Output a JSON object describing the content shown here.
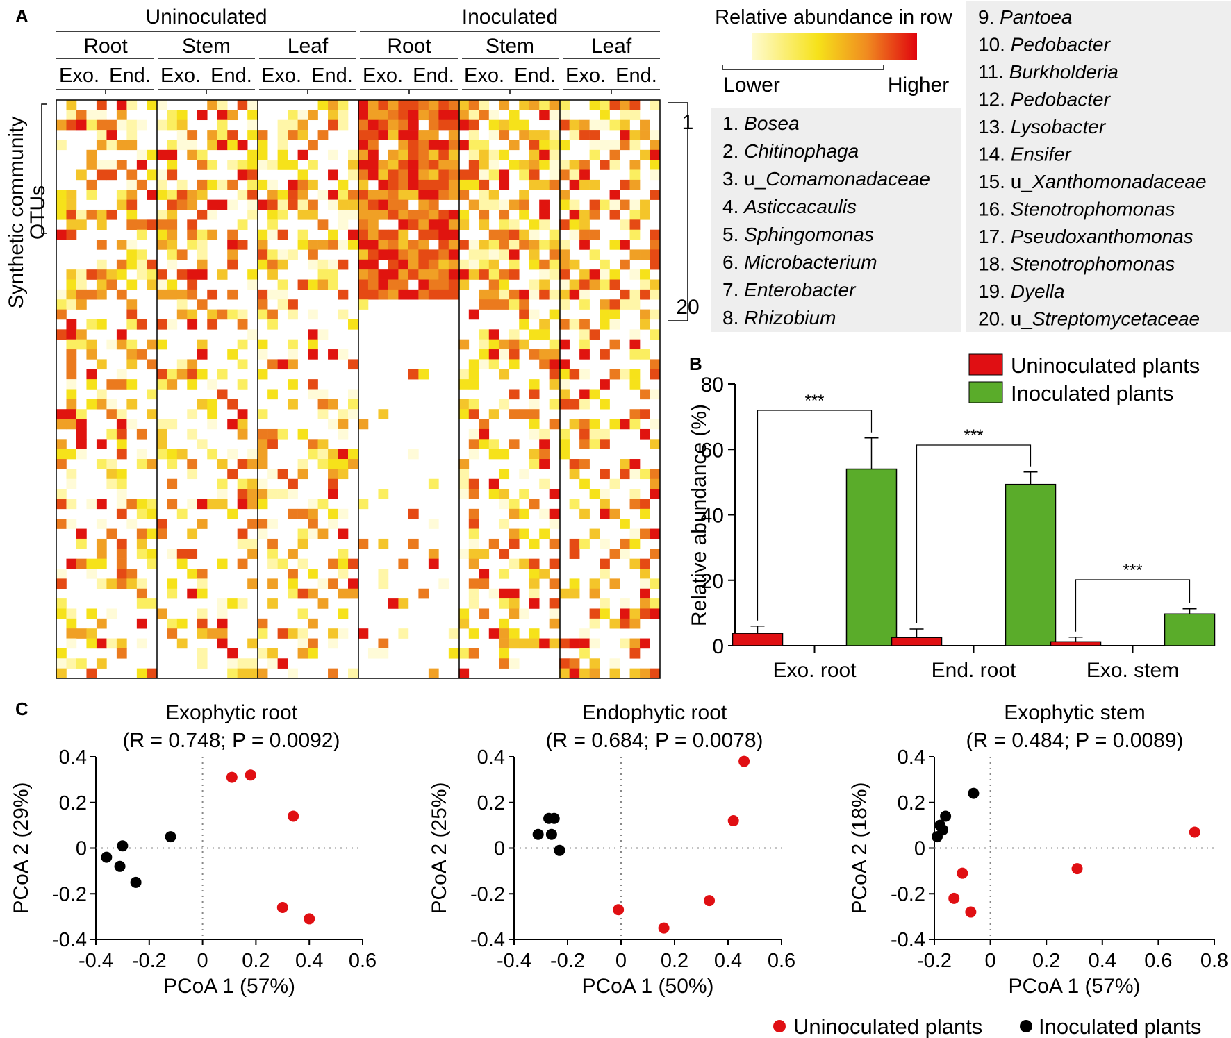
{
  "panel_letters": {
    "a": "A",
    "b": "B",
    "c": "C"
  },
  "colors": {
    "uninoculated": "#e00f13",
    "inoculated_bar": "#5aac2a",
    "inoculated_point": "#000000",
    "box_bg": "#eeeeee",
    "heat_low": "#fffde0",
    "heat_mid": "#f3d81c",
    "heat_high": "#e0140f"
  },
  "heatmap": {
    "groups": [
      "Uninoculated",
      "Inoculated"
    ],
    "tissues": [
      "Root",
      "Stem",
      "Leaf",
      "Root",
      "Stem",
      "Leaf"
    ],
    "compartments": [
      "Exo.",
      "End.",
      "Exo.",
      "End.",
      "Exo.",
      "End.",
      "Exo.",
      "End.",
      "Exo.",
      "End.",
      "Exo.",
      "End."
    ],
    "ylabel_line1": "Synthetic community",
    "ylabel_line2": "OTUs",
    "bracket_start": "1",
    "bracket_end": "20",
    "colorbar_title": "Relative abundance in row",
    "colorbar_low": "Lower",
    "colorbar_high": "Higher"
  },
  "otu_list": [
    {
      "num": "1.",
      "prefix": "",
      "name": "Bosea"
    },
    {
      "num": "2.",
      "prefix": "",
      "name": "Chitinophaga"
    },
    {
      "num": "3.",
      "prefix": "u_",
      "name": "Comamonadaceae"
    },
    {
      "num": "4.",
      "prefix": "",
      "name": "Asticcacaulis"
    },
    {
      "num": "5.",
      "prefix": "",
      "name": "Sphingomonas"
    },
    {
      "num": "6.",
      "prefix": "",
      "name": "Microbacterium"
    },
    {
      "num": "7.",
      "prefix": "",
      "name": "Enterobacter"
    },
    {
      "num": "8.",
      "prefix": "",
      "name": "Rhizobium"
    },
    {
      "num": "9.",
      "prefix": "",
      "name": "Pantoea"
    },
    {
      "num": "10.",
      "prefix": "",
      "name": "Pedobacter"
    },
    {
      "num": "11.",
      "prefix": "",
      "name": "Burkholderia"
    },
    {
      "num": "12.",
      "prefix": "",
      "name": "Pedobacter"
    },
    {
      "num": "13.",
      "prefix": "",
      "name": "Lysobacter"
    },
    {
      "num": "14.",
      "prefix": "",
      "name": "Ensifer"
    },
    {
      "num": "15.",
      "prefix": "u_",
      "name": "Xanthomonadaceae"
    },
    {
      "num": "16.",
      "prefix": "",
      "name": "Stenotrophomonas"
    },
    {
      "num": "17.",
      "prefix": "",
      "name": "Pseudoxanthomonas"
    },
    {
      "num": "18.",
      "prefix": "",
      "name": "Stenotrophomonas"
    },
    {
      "num": "19.",
      "prefix": "",
      "name": "Dyella"
    },
    {
      "num": "20.",
      "prefix": "u_",
      "name": "Streptomycetaceae"
    }
  ],
  "chart_data": [
    {
      "type": "bar",
      "panel": "B",
      "categories": [
        "Exo. root",
        "End. root",
        "Exo. stem"
      ],
      "series": [
        {
          "name": "Uninoculated plants",
          "values": [
            3.8,
            2.5,
            1.2
          ],
          "errors": [
            2.2,
            2.6,
            1.4
          ]
        },
        {
          "name": "Inoculated plants",
          "values": [
            54,
            49.3,
            9.7
          ],
          "errors": [
            9.5,
            3.8,
            1.6
          ]
        }
      ],
      "significance": [
        "***",
        "***",
        "***"
      ],
      "ylabel": "Relative abundance (%)",
      "ylim": [
        0,
        80
      ],
      "yticks": [
        "0",
        "20",
        "40",
        "60",
        "80"
      ]
    },
    {
      "type": "scatter",
      "panel": "C",
      "title": "Exophytic root",
      "subtitle": "(R = 0.748; P = 0.0092)",
      "xlabel": "PCoA 1 (57%)",
      "ylabel": "PCoA 2 (29%)",
      "xlim": [
        -0.4,
        0.6
      ],
      "ylim": [
        -0.4,
        0.4
      ],
      "xticks": [
        "-0.4",
        "-0.2",
        "0",
        "0.2",
        "0.4",
        "0.6"
      ],
      "yticks": [
        "-0.4",
        "-0.2",
        "0",
        "0.2",
        "0.4"
      ],
      "series": [
        {
          "name": "Uninoculated plants",
          "points": [
            [
              0.11,
              0.31
            ],
            [
              0.18,
              0.32
            ],
            [
              0.34,
              0.14
            ],
            [
              0.3,
              -0.26
            ],
            [
              0.4,
              -0.31
            ]
          ]
        },
        {
          "name": "Inoculated plants",
          "points": [
            [
              -0.12,
              0.05
            ],
            [
              -0.3,
              0.01
            ],
            [
              -0.36,
              -0.04
            ],
            [
              -0.31,
              -0.08
            ],
            [
              -0.25,
              -0.15
            ]
          ]
        }
      ]
    },
    {
      "type": "scatter",
      "panel": "C",
      "title": "Endophytic root",
      "subtitle": "(R = 0.684; P = 0.0078)",
      "xlabel": "PCoA 1 (50%)",
      "ylabel": "PCoA 2 (25%)",
      "xlim": [
        -0.4,
        0.6
      ],
      "ylim": [
        -0.4,
        0.4
      ],
      "xticks": [
        "-0.4",
        "-0.2",
        "0",
        "0.2",
        "0.4",
        "0.6"
      ],
      "yticks": [
        "-0.4",
        "-0.2",
        "0",
        "0.2",
        "0.4"
      ],
      "series": [
        {
          "name": "Uninoculated plants",
          "points": [
            [
              0.46,
              0.38
            ],
            [
              0.42,
              0.12
            ],
            [
              0.33,
              -0.23
            ],
            [
              -0.01,
              -0.27
            ],
            [
              0.16,
              -0.35
            ]
          ]
        },
        {
          "name": "Inoculated plants",
          "points": [
            [
              -0.27,
              0.13
            ],
            [
              -0.25,
              0.13
            ],
            [
              -0.31,
              0.06
            ],
            [
              -0.26,
              0.06
            ],
            [
              -0.23,
              -0.01
            ]
          ]
        }
      ]
    },
    {
      "type": "scatter",
      "panel": "C",
      "title": "Exophytic stem",
      "subtitle": "(R = 0.484; P = 0.0089)",
      "xlabel": "PCoA 1 (57%)",
      "ylabel": "PCoA 2 (18%)",
      "xlim": [
        -0.2,
        0.8
      ],
      "ylim": [
        -0.4,
        0.4
      ],
      "xticks": [
        "-0.2",
        "0",
        "0.2",
        "0.4",
        "0.6",
        "0.8"
      ],
      "yticks": [
        "-0.4",
        "-0.2",
        "0",
        "0.2",
        "0.4"
      ],
      "series": [
        {
          "name": "Uninoculated plants",
          "points": [
            [
              0.73,
              0.07
            ],
            [
              0.31,
              -0.09
            ],
            [
              -0.1,
              -0.11
            ],
            [
              -0.13,
              -0.22
            ],
            [
              -0.07,
              -0.28
            ]
          ]
        },
        {
          "name": "Inoculated plants",
          "points": [
            [
              -0.06,
              0.24
            ],
            [
              -0.16,
              0.14
            ],
            [
              -0.18,
              0.1
            ],
            [
              -0.17,
              0.08
            ],
            [
              -0.19,
              0.05
            ]
          ]
        }
      ]
    }
  ],
  "legend_c": {
    "uninoculated": "Uninoculated plants",
    "inoculated": "Inoculated plants"
  }
}
